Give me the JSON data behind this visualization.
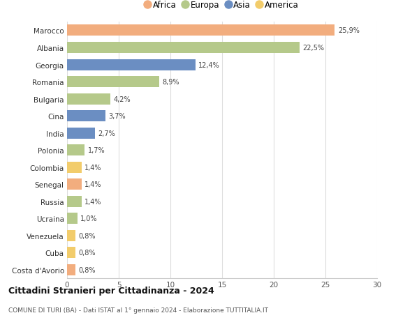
{
  "countries": [
    "Marocco",
    "Albania",
    "Georgia",
    "Romania",
    "Bulgaria",
    "Cina",
    "India",
    "Polonia",
    "Colombia",
    "Senegal",
    "Russia",
    "Ucraina",
    "Venezuela",
    "Cuba",
    "Costa d'Avorio"
  ],
  "values": [
    25.9,
    22.5,
    12.4,
    8.9,
    4.2,
    3.7,
    2.7,
    1.7,
    1.4,
    1.4,
    1.4,
    1.0,
    0.8,
    0.8,
    0.8
  ],
  "labels": [
    "25,9%",
    "22,5%",
    "12,4%",
    "8,9%",
    "4,2%",
    "3,7%",
    "2,7%",
    "1,7%",
    "1,4%",
    "1,4%",
    "1,4%",
    "1,0%",
    "0,8%",
    "0,8%",
    "0,8%"
  ],
  "continents": [
    "Africa",
    "Europa",
    "Asia",
    "Europa",
    "Europa",
    "Asia",
    "Asia",
    "Europa",
    "America",
    "Africa",
    "Europa",
    "Europa",
    "America",
    "America",
    "Africa"
  ],
  "colors": {
    "Africa": "#F2AD7E",
    "Europa": "#B5C98A",
    "Asia": "#6B8EC2",
    "America": "#F2CC6B"
  },
  "legend_order": [
    "Africa",
    "Europa",
    "Asia",
    "America"
  ],
  "title": "Cittadini Stranieri per Cittadinanza - 2024",
  "subtitle": "COMUNE DI TURI (BA) - Dati ISTAT al 1° gennaio 2024 - Elaborazione TUTTITALIA.IT",
  "xlim": [
    0,
    30
  ],
  "xticks": [
    0,
    5,
    10,
    15,
    20,
    25,
    30
  ],
  "background_color": "#ffffff",
  "grid_color": "#dddddd"
}
